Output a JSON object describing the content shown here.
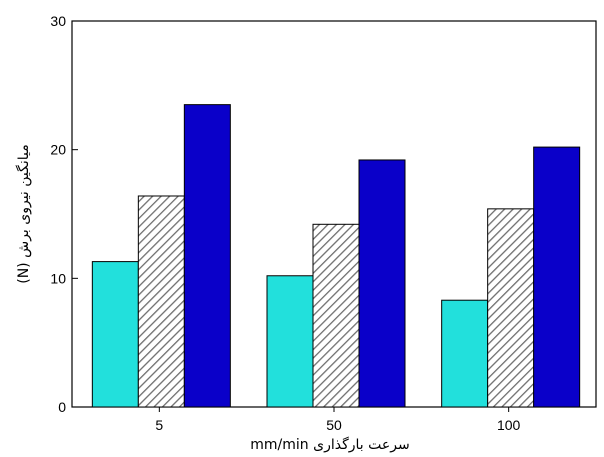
{
  "chart_data": {
    "type": "bar",
    "categories": [
      "5",
      "50",
      "100"
    ],
    "series": [
      {
        "values": [
          11.3,
          10.2,
          8.3
        ],
        "color": "#22e0dc",
        "fill": "solid"
      },
      {
        "values": [
          16.4,
          14.2,
          15.4
        ],
        "color": "#b4b4b4",
        "fill": "hatched"
      },
      {
        "values": [
          23.5,
          19.2,
          20.2
        ],
        "color": "#0a00c9",
        "fill": "solid"
      }
    ],
    "xlabel": "سرعت بارگذاری mm/min",
    "ylabel": "میانگین نیروی برش (N)",
    "ylim": [
      0,
      30
    ],
    "yticks": [
      "0",
      "10",
      "20",
      "30"
    ],
    "grid": false,
    "legend": false
  }
}
